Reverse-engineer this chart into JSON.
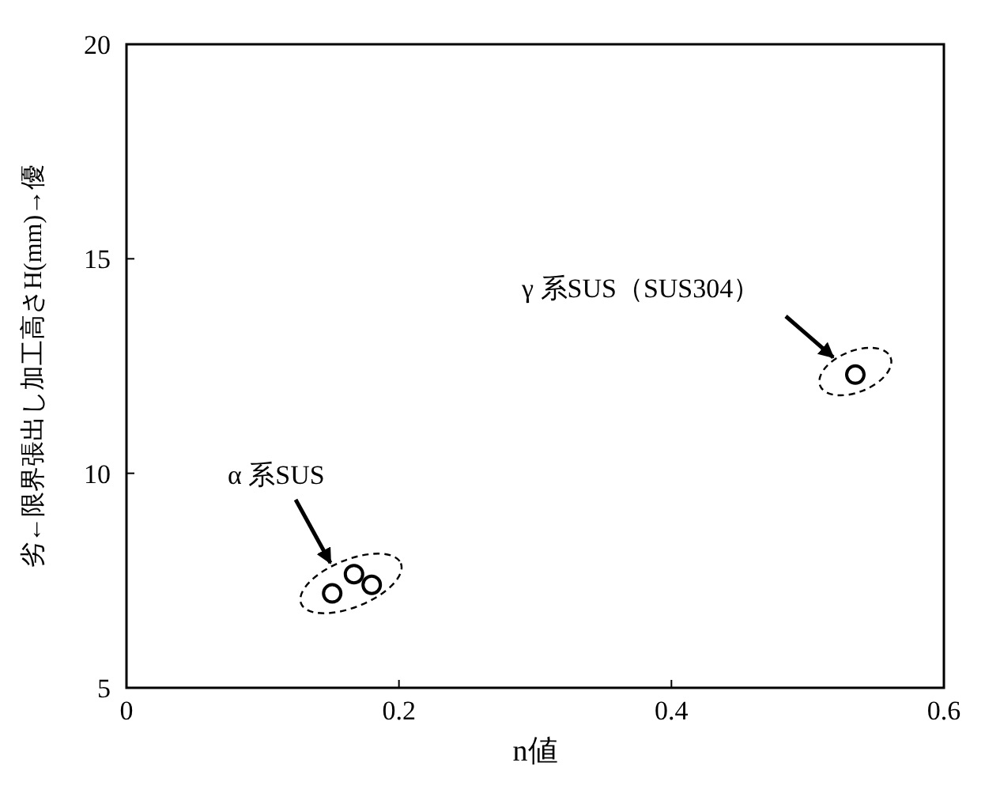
{
  "chart_data": {
    "type": "scatter",
    "xlabel": "n値",
    "ylabel": "劣←限界張出し加工高さH(mm)→優",
    "x": [
      0.151,
      0.167,
      0.18,
      0.535
    ],
    "series": [
      {
        "color": "#000000",
        "values": [
          7.2,
          7.65,
          7.4,
          12.3
        ]
      }
    ],
    "marker": "circle",
    "xlim": [
      0,
      0.6
    ],
    "ylim": [
      5,
      20
    ],
    "xticks": [
      0,
      0.2,
      0.4,
      0.6
    ],
    "yticks": [
      5,
      10,
      15,
      20
    ],
    "grid": false,
    "annotations": [
      "α 系SUS",
      "γ 系SUS（SUS304）"
    ]
  }
}
